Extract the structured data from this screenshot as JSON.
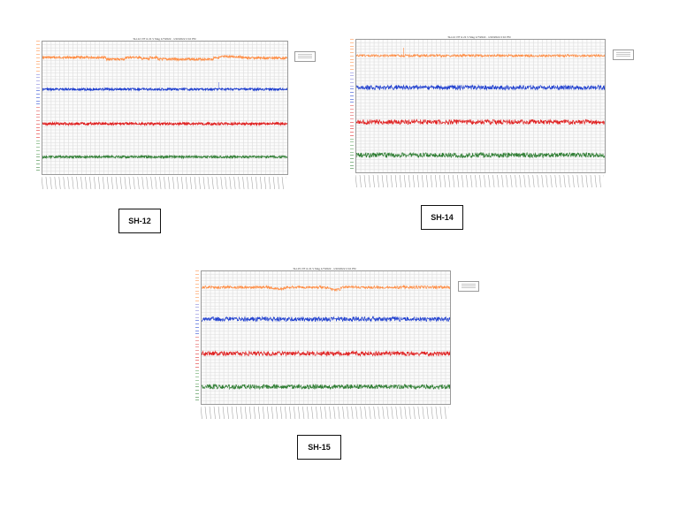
{
  "chart_data": [
    {
      "type": "line",
      "title": "SH-12 VIT & 21 V Mag 1/7/2022 - 1/10/2022 2:10 PM",
      "caption": "SH-12",
      "series_colors": [
        "#ff8c42",
        "#1f3fcf",
        "#e02020",
        "#2e7d32"
      ],
      "legend": "right",
      "grid": true
    },
    {
      "type": "line",
      "title": "SH-14 VIT & 21 V Mag 1/7/2022 - 1/10/2022 2:10 PM",
      "caption": "SH-14",
      "series_colors": [
        "#ff8c42",
        "#1f3fcf",
        "#e02020",
        "#2e7d32"
      ],
      "legend": "right",
      "grid": true
    },
    {
      "type": "line",
      "title": "SH-15 VIT & 21 V Mag 1/7/2022 - 1/10/2022 2:10 PM",
      "caption": "SH-15",
      "series_colors": [
        "#ff8c42",
        "#1f3fcf",
        "#e02020",
        "#2e7d32"
      ],
      "legend": "right",
      "grid": true
    }
  ]
}
